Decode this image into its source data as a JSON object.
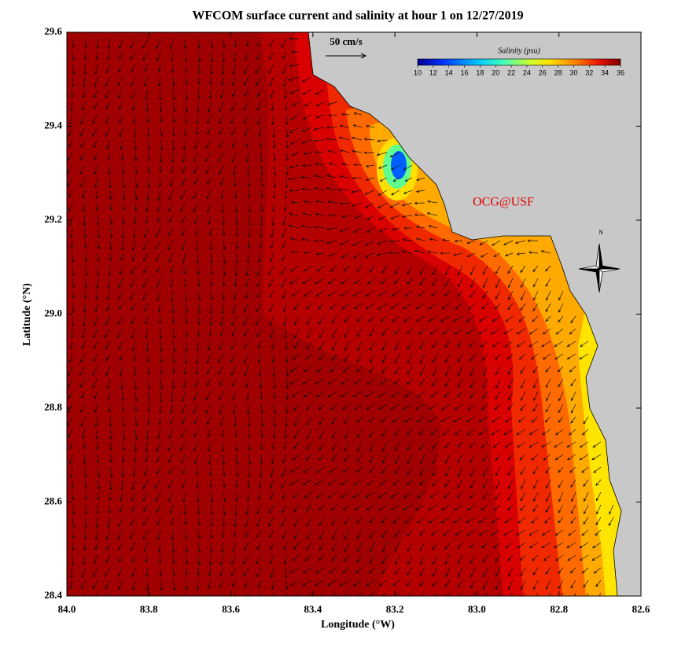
{
  "title": "WFCOM surface current and salinity at hour 1 on 12/27/2019",
  "x_axis": {
    "label": "Longitude (°W)",
    "lim": [
      84.0,
      82.6
    ],
    "ticks": [
      {
        "value": 84.0,
        "label": "84.0"
      },
      {
        "value": 83.8,
        "label": "83.8"
      },
      {
        "value": 83.6,
        "label": "83.6"
      },
      {
        "value": 83.4,
        "label": "83.4"
      },
      {
        "value": 83.2,
        "label": "83.2"
      },
      {
        "value": 83.0,
        "label": "83.0"
      },
      {
        "value": 82.8,
        "label": "82.8"
      },
      {
        "value": 82.6,
        "label": "82.6"
      }
    ]
  },
  "y_axis": {
    "label": "Latitude (°N)",
    "lim": [
      28.4,
      29.6
    ],
    "ticks": [
      {
        "value": 28.4,
        "label": "28.4"
      },
      {
        "value": 28.6,
        "label": "28.6"
      },
      {
        "value": 28.8,
        "label": "28.8"
      },
      {
        "value": 29.0,
        "label": "29.0"
      },
      {
        "value": 29.2,
        "label": "29.2"
      },
      {
        "value": 29.4,
        "label": "29.4"
      },
      {
        "value": 29.6,
        "label": "29.6"
      }
    ]
  },
  "colorbar": {
    "label": "Salinity (psu)",
    "lim": [
      10,
      36
    ],
    "ticks": [
      10,
      12,
      14,
      16,
      18,
      20,
      22,
      24,
      26,
      28,
      30,
      32,
      34,
      36
    ]
  },
  "scale_arrow": {
    "label": "50 cm/s"
  },
  "watermark": "OCG@USF",
  "compass": "N"
}
